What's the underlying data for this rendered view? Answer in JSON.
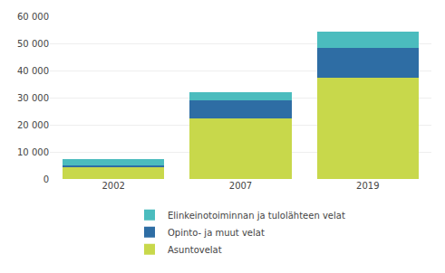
{
  "chart_data": {
    "type": "bar",
    "stacked": true,
    "categories": [
      "2002",
      "2007",
      "2019"
    ],
    "series": [
      {
        "name": "Asuntovelat",
        "color": "#c8d84b",
        "values": [
          4200,
          22500,
          37500
        ]
      },
      {
        "name": "Opinto- ja muut velat",
        "color": "#2e6da4",
        "values": [
          900,
          6500,
          11000
        ]
      },
      {
        "name": "Elinkeinotoiminnan ja tulolähteen velat",
        "color": "#4bbcbe",
        "values": [
          2300,
          3000,
          6000
        ]
      }
    ],
    "ylim": [
      0,
      60000
    ],
    "yticks": [
      0,
      {
        "value": 10000,
        "label": "10 000"
      },
      {
        "value": 20000,
        "label": "20 000"
      },
      {
        "value": 30000,
        "label": "30 000"
      },
      {
        "value": 40000,
        "label": "40 000"
      },
      {
        "value": 50000,
        "label": "50 000"
      },
      {
        "value": 60000,
        "label": "60 000"
      }
    ],
    "grid": true,
    "legend": "bottom"
  }
}
